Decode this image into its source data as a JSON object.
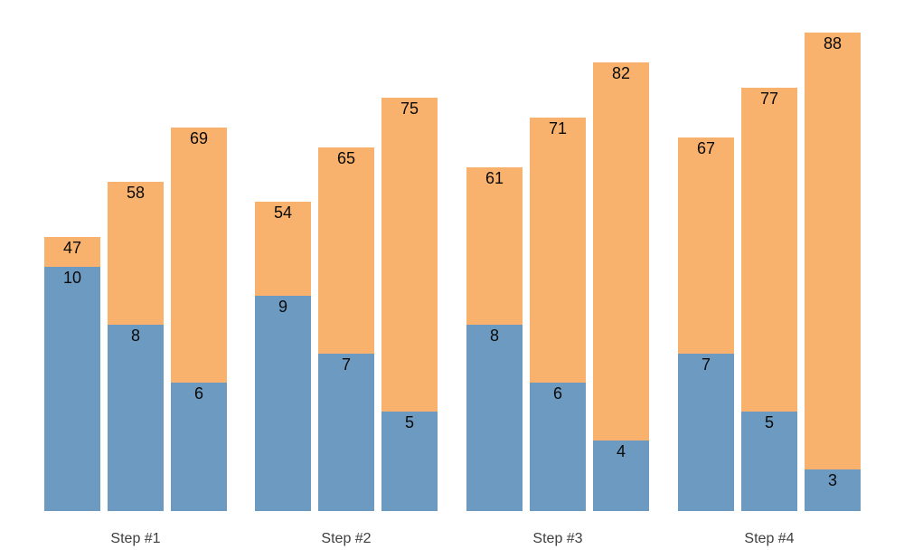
{
  "chart_data": {
    "type": "bar",
    "variant": "grouped-stacked",
    "title": "",
    "xlabel": "",
    "ylabel": "",
    "grid": false,
    "legend": "none",
    "axes_visible": false,
    "categories": [
      "Step #1",
      "Step #2",
      "Step #3",
      "Step #4"
    ],
    "series_note": "Each group has 3 bars; each bar = blue bottom segment + orange top segment. Label inside orange top = bar total; label inside blue top = blue segment value.",
    "groups": [
      {
        "label": "Step #1",
        "bars": [
          {
            "blue": 10,
            "total": 47
          },
          {
            "blue": 8,
            "total": 58
          },
          {
            "blue": 6,
            "total": 69
          }
        ]
      },
      {
        "label": "Step #2",
        "bars": [
          {
            "blue": 9,
            "total": 54
          },
          {
            "blue": 7,
            "total": 65
          },
          {
            "blue": 5,
            "total": 75
          }
        ]
      },
      {
        "label": "Step #3",
        "bars": [
          {
            "blue": 8,
            "total": 61
          },
          {
            "blue": 6,
            "total": 71
          },
          {
            "blue": 4,
            "total": 82
          }
        ]
      },
      {
        "label": "Step #4",
        "bars": [
          {
            "blue": 7,
            "total": 67
          },
          {
            "blue": 5,
            "total": 77
          },
          {
            "blue": 3,
            "total": 88
          }
        ]
      }
    ],
    "colors": {
      "blue_segment": "#6d9ac1",
      "orange_segment": "#f9b26d",
      "bar_label_text": "#0a0a0a",
      "category_label_text": "#3f3f3f",
      "background": "#ffffff"
    }
  }
}
